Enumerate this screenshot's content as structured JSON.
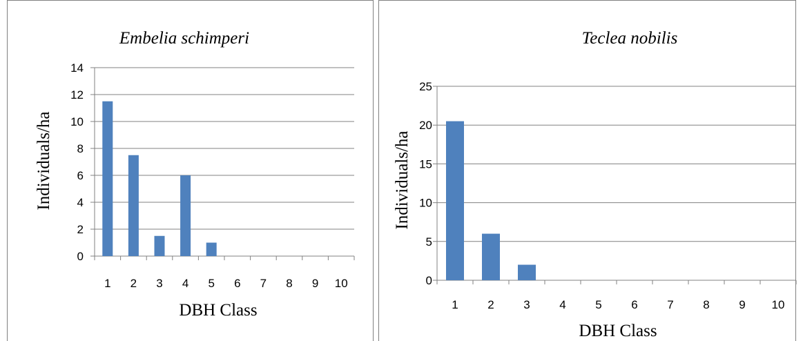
{
  "colors": {
    "bar": "#4f81bd",
    "grid": "#808080",
    "border": "#7f7f7f"
  },
  "chart_data": [
    {
      "type": "bar",
      "title": "Embelia schimperi",
      "xlabel": "DBH Class",
      "ylabel": "Individuals/ha",
      "categories": [
        "1",
        "2",
        "3",
        "4",
        "5",
        "6",
        "7",
        "8",
        "9",
        "10"
      ],
      "values": [
        11.5,
        7.5,
        1.5,
        6,
        1,
        0,
        0,
        0,
        0,
        0
      ],
      "ylim": [
        0,
        14
      ],
      "yticks": [
        0,
        2,
        4,
        6,
        8,
        10,
        12,
        14
      ],
      "grid": true
    },
    {
      "type": "bar",
      "title": "Teclea nobilis",
      "xlabel": "DBH Class",
      "ylabel": "Individuals/ha",
      "categories": [
        "1",
        "2",
        "3",
        "4",
        "5",
        "6",
        "7",
        "8",
        "9",
        "10"
      ],
      "values": [
        20.5,
        6,
        2,
        0,
        0,
        0,
        0,
        0,
        0,
        0
      ],
      "ylim": [
        0,
        25
      ],
      "yticks": [
        0,
        5,
        10,
        15,
        20,
        25
      ],
      "grid": true
    }
  ]
}
